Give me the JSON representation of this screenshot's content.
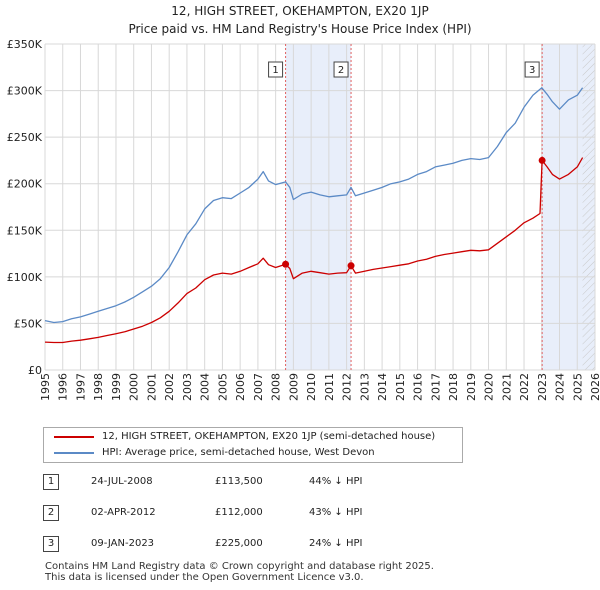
{
  "title_line1": "12, HIGH STREET, OKEHAMPTON, EX20 1JP",
  "title_line2": "Price paid vs. HM Land Registry's House Price Index (HPI)",
  "colors": {
    "property": "#cc0000",
    "hpi": "#5b8ac6",
    "shade": "#e8eefa",
    "marker_line": "#e06060",
    "grid": "#d8d8d8"
  },
  "legend": {
    "property_label": "12, HIGH STREET, OKEHAMPTON, EX20 1JP (semi-detached house)",
    "hpi_label": "HPI: Average price, semi-detached house, West Devon"
  },
  "sales": [
    {
      "num": "1",
      "date": "24-JUL-2008",
      "price": "£113,500",
      "hpi": "44% ↓ HPI",
      "x": 2008.56,
      "y": 113500
    },
    {
      "num": "2",
      "date": "02-APR-2012",
      "price": "£112,000",
      "hpi": "43% ↓ HPI",
      "x": 2012.25,
      "y": 112000
    },
    {
      "num": "3",
      "date": "09-JAN-2023",
      "price": "£225,000",
      "hpi": "24% ↓ HPI",
      "x": 2023.02,
      "y": 225000
    }
  ],
  "footer": {
    "line1": "Contains HM Land Registry data © Crown copyright and database right 2025.",
    "line2": "This data is licensed under the Open Government Licence v3.0."
  },
  "chart_data": {
    "type": "line",
    "title": "12, HIGH STREET, OKEHAMPTON, EX20 1JP",
    "subtitle": "Price paid vs. HM Land Registry's House Price Index (HPI)",
    "xlabel": "",
    "ylabel": "",
    "xlim": [
      1995,
      2026
    ],
    "ylim": [
      0,
      350000
    ],
    "grid": true,
    "legend_position": "bottom",
    "x_ticks": [
      1995,
      1996,
      1997,
      1998,
      1999,
      2000,
      2001,
      2002,
      2003,
      2004,
      2005,
      2006,
      2007,
      2008,
      2009,
      2010,
      2011,
      2012,
      2013,
      2014,
      2015,
      2016,
      2017,
      2018,
      2019,
      2020,
      2021,
      2022,
      2023,
      2024,
      2025,
      2026
    ],
    "x_tick_labels": [
      "1995",
      "1996",
      "1997",
      "1998",
      "1999",
      "2000",
      "2001",
      "2002",
      "2003",
      "2004",
      "2005",
      "2006",
      "2007",
      "2008",
      "2009",
      "2010",
      "2011",
      "2012",
      "2013",
      "2014",
      "2015",
      "2016",
      "2017",
      "2018",
      "2019",
      "2020",
      "2021",
      "2022",
      "2023",
      "2024",
      "2025",
      "2026"
    ],
    "y_ticks": [
      0,
      50000,
      100000,
      150000,
      200000,
      250000,
      300000,
      350000
    ],
    "y_tick_labels": [
      "£0",
      "£50K",
      "£100K",
      "£150K",
      "£200K",
      "£250K",
      "£300K",
      "£350K"
    ],
    "shaded_ranges": [
      [
        2008.56,
        2012.25
      ],
      [
        2023.02,
        2026
      ]
    ],
    "hatched_range": [
      2025.3,
      2026
    ],
    "series": [
      {
        "name": "HPI: Average price, semi-detached house, West Devon",
        "x": [
          1995,
          1995.5,
          1996,
          1996.5,
          1997,
          1997.5,
          1998,
          1998.5,
          1999,
          1999.5,
          2000,
          2000.5,
          2001,
          2001.5,
          2002,
          2002.5,
          2003,
          2003.5,
          2004,
          2004.5,
          2005,
          2005.5,
          2006,
          2006.5,
          2007,
          2007.3,
          2007.6,
          2008,
          2008.56,
          2008.8,
          2009,
          2009.5,
          2010,
          2010.5,
          2011,
          2011.5,
          2012,
          2012.25,
          2012.5,
          2013,
          2013.5,
          2014,
          2014.5,
          2015,
          2015.5,
          2016,
          2016.5,
          2017,
          2017.5,
          2018,
          2018.5,
          2019,
          2019.5,
          2020,
          2020.5,
          2021,
          2021.5,
          2022,
          2022.5,
          2023,
          2023.3,
          2023.6,
          2024,
          2024.5,
          2025,
          2025.3
        ],
        "values": [
          53000,
          51000,
          52000,
          55000,
          57000,
          60000,
          63000,
          66000,
          69000,
          73000,
          78000,
          84000,
          90000,
          98000,
          110000,
          127000,
          145000,
          157000,
          173000,
          182000,
          185000,
          184000,
          190000,
          196000,
          205000,
          213000,
          203000,
          199000,
          202000,
          196000,
          183000,
          189000,
          191000,
          188000,
          186000,
          187000,
          188000,
          196000,
          187000,
          190000,
          193000,
          196000,
          200000,
          202000,
          205000,
          210000,
          213000,
          218000,
          220000,
          222000,
          225000,
          227000,
          226000,
          228000,
          240000,
          255000,
          265000,
          282000,
          295000,
          303000,
          296000,
          288000,
          280000,
          290000,
          295000,
          303000
        ]
      },
      {
        "name": "12, HIGH STREET, OKEHAMPTON, EX20 1JP (semi-detached house)",
        "x": [
          1995,
          1995.5,
          1996,
          1996.5,
          1997,
          1997.5,
          1998,
          1998.5,
          1999,
          1999.5,
          2000,
          2000.5,
          2001,
          2001.5,
          2002,
          2002.5,
          2003,
          2003.5,
          2004,
          2004.5,
          2005,
          2005.5,
          2006,
          2006.5,
          2007,
          2007.3,
          2007.6,
          2008,
          2008.56,
          2008.8,
          2009,
          2009.5,
          2010,
          2010.5,
          2011,
          2011.5,
          2012,
          2012.25,
          2012.5,
          2013,
          2013.5,
          2014,
          2014.5,
          2015,
          2015.5,
          2016,
          2016.5,
          2017,
          2017.5,
          2018,
          2018.5,
          2019,
          2019.5,
          2020,
          2020.5,
          2021,
          2021.5,
          2022,
          2022.5,
          2022.9,
          2023.02,
          2023.3,
          2023.6,
          2024,
          2024.5,
          2025,
          2025.3
        ],
        "values": [
          30000,
          29500,
          29500,
          31000,
          32000,
          33500,
          35000,
          37000,
          39000,
          41000,
          44000,
          47000,
          51000,
          56000,
          63000,
          72000,
          82000,
          88000,
          97000,
          102000,
          104000,
          103000,
          106000,
          110000,
          114000,
          120000,
          113000,
          110000,
          113500,
          109000,
          98000,
          104000,
          106000,
          104500,
          103000,
          104000,
          104500,
          112000,
          104000,
          106000,
          108000,
          109500,
          111000,
          112500,
          114000,
          117000,
          119000,
          122000,
          124000,
          125500,
          127000,
          128500,
          128000,
          129000,
          136000,
          143000,
          150000,
          158000,
          163000,
          168000,
          225000,
          218000,
          210000,
          205000,
          210000,
          218000,
          228000
        ]
      }
    ]
  }
}
